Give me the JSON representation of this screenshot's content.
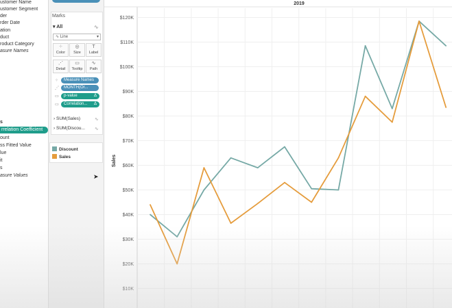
{
  "data_pane": {
    "fields": [
      {
        "label": "ustomer Name",
        "top": 0,
        "italic": false
      },
      {
        "label": "ustomer Segment",
        "top": 10
      },
      {
        "label": "der",
        "top": 20
      },
      {
        "label": "rder Date",
        "top": 30
      },
      {
        "label": "ation",
        "top": 41
      },
      {
        "label": "duct",
        "top": 51
      },
      {
        "label": "roduct Category",
        "top": 61
      },
      {
        "label": "asure Names",
        "top": 71,
        "italic": true
      }
    ],
    "measures_header": "s",
    "measures": [
      {
        "label": "rrelation Coefficient",
        "highlight": true
      },
      {
        "label": "ount"
      },
      {
        "label": "ss Fitted Value"
      },
      {
        "label": "lue"
      },
      {
        "label": "it"
      },
      {
        "label": "s"
      },
      {
        "label": "asure Values",
        "italic": true
      }
    ]
  },
  "marks": {
    "title": "Marks",
    "all_label": "All",
    "mark_type": "Line",
    "buttons": [
      {
        "name": "color-button",
        "label": "Color",
        "icon": "⁘"
      },
      {
        "name": "size-button",
        "label": "Size",
        "icon": "◎"
      },
      {
        "name": "label-button",
        "label": "Label",
        "icon": "T"
      },
      {
        "name": "detail-button",
        "label": "Detail",
        "icon": "⋰"
      },
      {
        "name": "tooltip-button",
        "label": "Tooltip",
        "icon": "▭"
      },
      {
        "name": "path-button",
        "label": "Path",
        "icon": "∿"
      }
    ],
    "pills": [
      {
        "label": "Measure Names",
        "color": "blue",
        "icon": "⁘"
      },
      {
        "label": "MONTH(Or...",
        "color": "blue",
        "icon": "⋰"
      },
      {
        "label": "p-value",
        "color": "green",
        "icon": "▭",
        "delta": "Δ"
      },
      {
        "label": "Correlation...",
        "color": "green",
        "icon": "▭",
        "delta": "Δ"
      }
    ],
    "sum_rows": [
      {
        "label": "SUM(Sales)"
      },
      {
        "label": "SUM(Discou..."
      }
    ]
  },
  "legend": [
    {
      "label": "Discount",
      "color": "#76a9a6"
    },
    {
      "label": "Sales",
      "color": "#e59c3c"
    }
  ],
  "chart_data": {
    "type": "line",
    "title": "2019",
    "ylabel": "Sales",
    "ylim": [
      0,
      125000
    ],
    "yticks": [
      "$10K",
      "$20K",
      "$30K",
      "$40K",
      "$50K",
      "$60K",
      "$70K",
      "$80K",
      "$90K",
      "$100K",
      "$110K",
      "$120K"
    ],
    "x": [
      1,
      2,
      3,
      4,
      5,
      6,
      7,
      8,
      9,
      10,
      11,
      12
    ],
    "series": [
      {
        "name": "Discount",
        "color": "#76a9a6",
        "values": [
          40000,
          31000,
          50000,
          63000,
          59000,
          67500,
          50500,
          50000,
          108500,
          83000,
          118500,
          108500
        ]
      },
      {
        "name": "Sales",
        "color": "#e59c3c",
        "values": [
          44000,
          20000,
          59000,
          36500,
          44500,
          53000,
          45000,
          63000,
          88000,
          77500,
          118500,
          83500
        ]
      }
    ]
  }
}
